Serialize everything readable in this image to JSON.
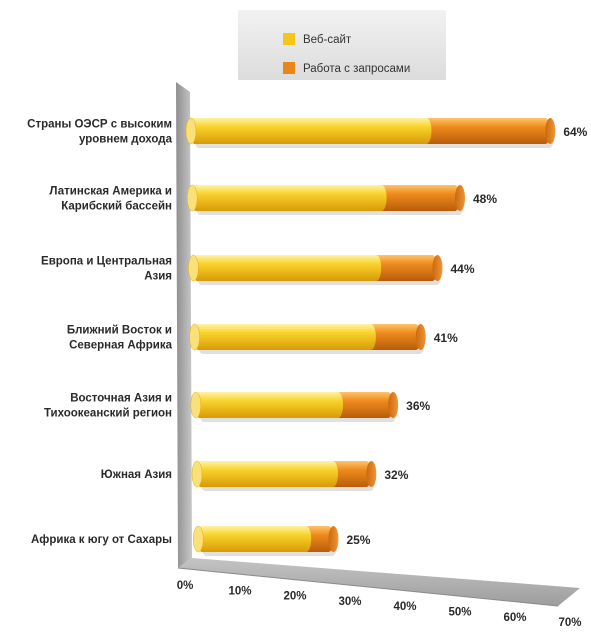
{
  "chart_data": {
    "type": "bar",
    "stacked": true,
    "orientation": "horizontal",
    "categories": [
      [
        "Страны ОЭСР с высоким",
        "уровнем дохода"
      ],
      [
        "Латинская Америка и",
        "Карибский бассейн"
      ],
      [
        "Европа и Центральная",
        "Азия"
      ],
      [
        "Ближний Восток и",
        "Северная Африка"
      ],
      [
        "Восточная Азия и",
        "Тихоокеанский регион"
      ],
      [
        "Южная Азия"
      ],
      [
        "Африка к югу от Сахары"
      ]
    ],
    "series": [
      {
        "name": "Веб-сайт",
        "color": "#f5c518",
        "values": [
          42,
          34,
          33,
          32,
          26,
          25,
          20
        ]
      },
      {
        "name": "Работа с запросами",
        "color": "#e8861a",
        "values": [
          22,
          14,
          11,
          9,
          10,
          7,
          5
        ]
      }
    ],
    "totals": [
      64,
      48,
      44,
      41,
      36,
      32,
      25
    ],
    "total_labels": [
      "64%",
      "48%",
      "44%",
      "41%",
      "36%",
      "32%",
      "25%"
    ],
    "xlim": [
      0,
      70
    ],
    "x_ticks": [
      "0%",
      "10%",
      "20%",
      "30%",
      "40%",
      "50%",
      "60%",
      "70%"
    ],
    "legend_position": "top",
    "style": "3d-cylinder"
  }
}
